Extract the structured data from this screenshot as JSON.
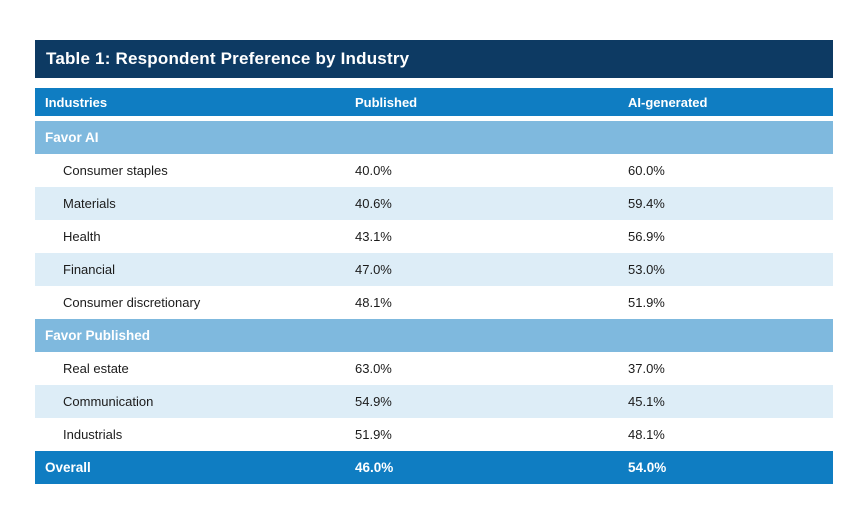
{
  "chart_data": {
    "type": "table",
    "title": "Table 1: Respondent Preference by Industry",
    "columns": [
      "Industries",
      "Published",
      "AI-generated"
    ],
    "sections": [
      {
        "label": "Favor AI",
        "rows": [
          [
            "Consumer staples",
            "40.0%",
            "60.0%"
          ],
          [
            "Materials",
            "40.6%",
            "59.4%"
          ],
          [
            "Health",
            "43.1%",
            "56.9%"
          ],
          [
            "Financial",
            "47.0%",
            "53.0%"
          ],
          [
            "Consumer discretionary",
            "48.1%",
            "51.9%"
          ]
        ]
      },
      {
        "label": "Favor Published",
        "rows": [
          [
            "Real estate",
            "63.0%",
            "37.0%"
          ],
          [
            "Communication",
            "54.9%",
            "45.1%"
          ],
          [
            "Industrials",
            "51.9%",
            "48.1%"
          ]
        ]
      }
    ],
    "overall": [
      "Overall",
      "46.0%",
      "54.0%"
    ]
  },
  "colors": {
    "title_bar": "#0d3a63",
    "header_and_overall": "#0f7dc2",
    "section_band": "#7fb9de",
    "row_tint": "#ddedf7",
    "body_text": "#1b1b1b",
    "light_text": "#ffffff"
  }
}
